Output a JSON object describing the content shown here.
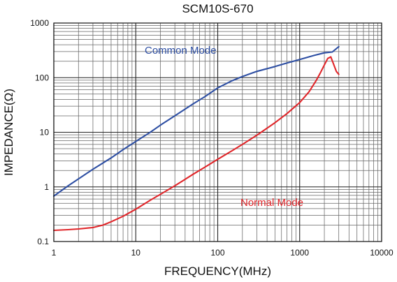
{
  "chart_data": {
    "type": "line",
    "title": "SCM10S-670",
    "xlabel": "FREQUENCY(MHz)",
    "ylabel": "IMPEDANCE(Ω)",
    "xscale": "log",
    "yscale": "log",
    "xlim": [
      1,
      10000
    ],
    "ylim": [
      0.1,
      1000
    ],
    "xticks": [
      "1",
      "10",
      "100",
      "1000",
      "10000"
    ],
    "yticks": [
      "0.1",
      "1",
      "10",
      "100",
      "1000"
    ],
    "grid": true,
    "series": [
      {
        "name": "Common Mode",
        "color": "#2e4fa3",
        "x": [
          1,
          1.5,
          2,
          3,
          5,
          7,
          10,
          15,
          20,
          30,
          50,
          70,
          100,
          150,
          200,
          300,
          500,
          700,
          1000,
          1500,
          2000,
          2500,
          3000
        ],
        "y": [
          0.68,
          1.05,
          1.4,
          2.1,
          3.4,
          4.8,
          6.8,
          10,
          13.5,
          20,
          33,
          45,
          65,
          88,
          105,
          130,
          160,
          185,
          215,
          255,
          285,
          295,
          370
        ]
      },
      {
        "name": "Normal Mode",
        "color": "#e0262a",
        "x": [
          1,
          1.5,
          2,
          3,
          4,
          5,
          7,
          10,
          15,
          20,
          30,
          50,
          70,
          100,
          150,
          200,
          300,
          500,
          700,
          1000,
          1300,
          1600,
          1800,
          2000,
          2200,
          2400,
          2600,
          2800,
          3000
        ],
        "y": [
          0.16,
          0.165,
          0.17,
          0.18,
          0.2,
          0.23,
          0.29,
          0.39,
          0.57,
          0.73,
          1.05,
          1.7,
          2.3,
          3.2,
          4.6,
          6,
          8.8,
          15,
          22,
          35,
          55,
          90,
          125,
          170,
          225,
          240,
          175,
          130,
          115
        ]
      }
    ]
  }
}
